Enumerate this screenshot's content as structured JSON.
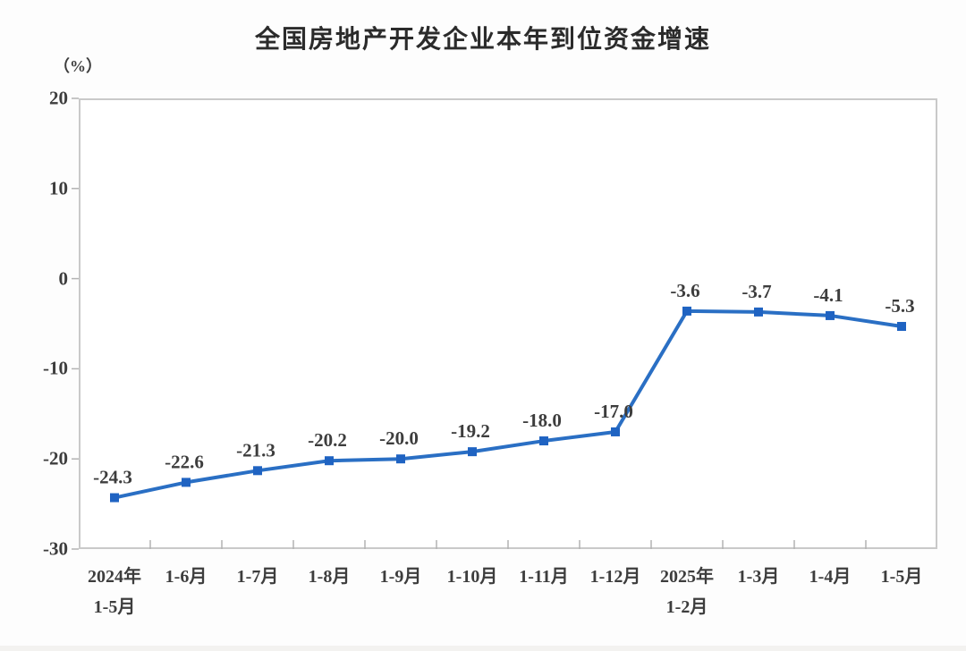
{
  "header": {
    "title": "全国房地产开发企业本年到位资金增速",
    "unit_label": "（%）"
  },
  "chart_data": {
    "type": "line",
    "title": "全国房地产开发企业本年到位资金增速",
    "unit": "（%）",
    "categories": [
      "2024年\n1-5月",
      "1-6月",
      "1-7月",
      "1-8月",
      "1-9月",
      "1-10月",
      "1-11月",
      "1-12月",
      "2025年\n1-2月",
      "1-3月",
      "1-4月",
      "1-5月"
    ],
    "values": [
      -24.3,
      -22.6,
      -21.3,
      -20.2,
      -20.0,
      -19.2,
      -18.0,
      -17.0,
      -3.6,
      -3.7,
      -4.1,
      -5.3
    ],
    "point_labels": [
      "-24.3",
      "-22.6",
      "-21.3",
      "-20.2",
      "-20.0",
      "-19.2",
      "-18.0",
      "-17.0",
      "-3.6",
      "-3.7",
      "-4.1",
      "-5.3"
    ],
    "ylim": [
      -30,
      20
    ],
    "yticks": [
      20,
      10,
      0,
      -10,
      -20,
      -30
    ],
    "xlabel": "",
    "ylabel": "（%）",
    "grid": false,
    "legend_position": "none",
    "marker": "square",
    "colors": {
      "line": "#2a6fc4",
      "marker": "#1f63c2",
      "text": "#3d3d3d",
      "axis_border": "#c9c9c9",
      "tick": "#b3b3b3"
    }
  }
}
